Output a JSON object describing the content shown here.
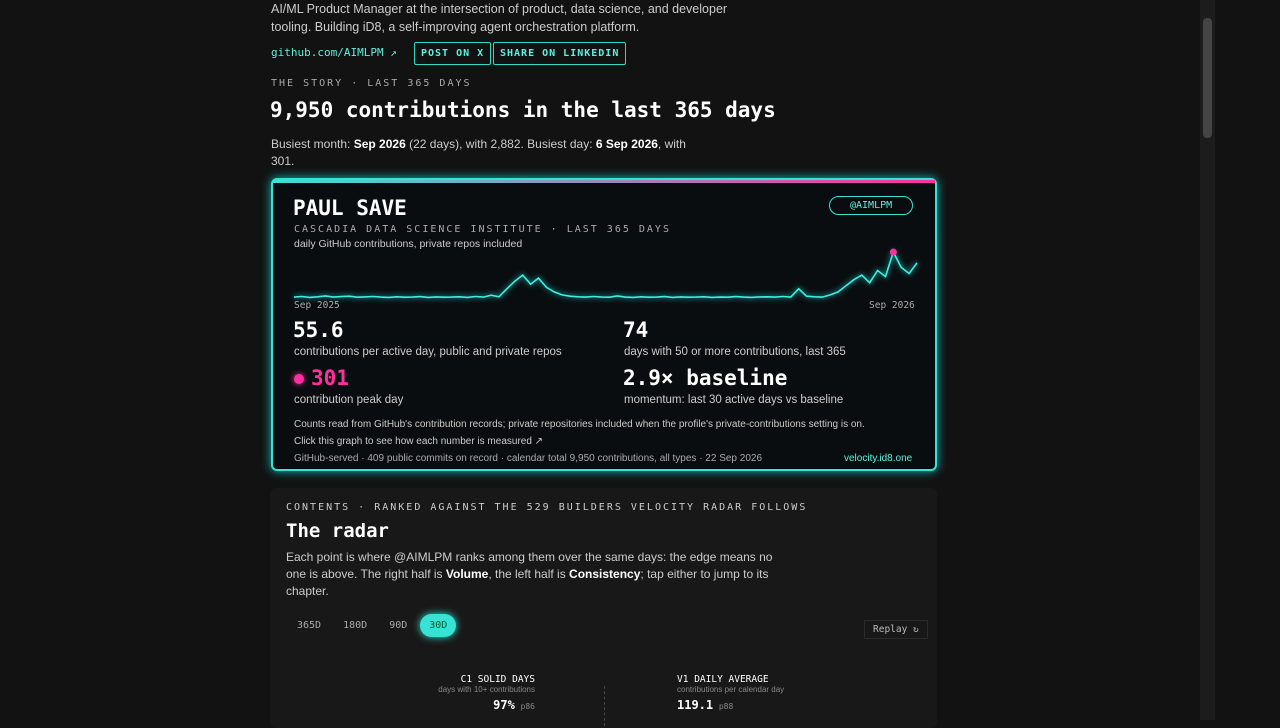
{
  "intro": "AI/ML Product Manager at the intersection of product, data science, and developer tooling. Building iD8, a self-improving agent orchestration platform.",
  "links": {
    "github": "github.com/AIMLPM ↗",
    "post": "POST ON X",
    "share": "SHARE ON LINKEDIN"
  },
  "story": {
    "eyebrow": "THE STORY · LAST 365 DAYS",
    "title": "9,950 contributions in the last 365 days",
    "summary": [
      "Busiest month: ",
      "Sep 2026",
      " (22 days), with 2,882. Busiest day: ",
      "6 Sep 2026",
      ", with 301."
    ]
  },
  "card": {
    "name": "PAUL SAVE",
    "handle": "@AIMLPM",
    "org": "CASCADIA DATA SCIENCE INSTITUTE · LAST 365 DAYS",
    "caption": "daily GitHub contributions, private repos included",
    "sparkline": {
      "start": "Sep 2025",
      "end": "Sep 2026",
      "values": [
        6,
        10,
        4,
        8,
        14,
        6,
        9,
        12,
        5,
        7,
        10,
        6,
        4,
        8,
        5,
        6,
        9,
        4,
        7,
        5,
        6,
        8,
        4,
        10,
        6,
        18,
        8,
        60,
        110,
        150,
        90,
        130,
        70,
        40,
        20,
        12,
        8,
        6,
        10,
        6,
        5,
        14,
        6,
        4,
        8,
        5,
        6,
        9,
        4,
        7,
        5,
        6,
        8,
        4,
        6,
        5,
        9,
        6,
        4,
        7,
        8,
        6,
        10,
        6,
        60,
        12,
        8,
        6,
        20,
        40,
        80,
        120,
        150,
        100,
        180,
        140,
        301,
        200,
        160,
        230
      ]
    },
    "stats": [
      {
        "value": "55.6",
        "label": "contributions per active day, public and private repos"
      },
      {
        "value": "74",
        "label": "days with 50 or more contributions, last 365"
      },
      {
        "value": "301",
        "label": "contribution peak day"
      },
      {
        "value": "2.9× baseline",
        "label": "momentum: last 30 active days vs baseline"
      }
    ],
    "notes": [
      "Counts read from GitHub's contribution records; private repositories included when the profile's private-contributions setting is on.",
      "Click this graph to see how each number is measured ↗"
    ],
    "footer": "GitHub-served · 409 public commits on record · calendar total 9,950 contributions, all types · 22 Sep 2026",
    "site": "velocity.id8.one"
  },
  "radar": {
    "eyebrow": "CONTENTS · RANKED AGAINST THE 529 BUILDERS VELOCITY RADAR FOLLOWS",
    "title": "The radar",
    "body": [
      "Each point is where @AIMLPM ranks among them over the same days: the edge means no one is above. The right half is ",
      "Volume",
      ", the left half is ",
      "Consistency",
      "; tap either to jump to its chapter."
    ],
    "tabs": [
      "365D",
      "180D",
      "90D",
      "30D"
    ],
    "replay": "Replay ↻",
    "metrics": [
      {
        "code": "C1",
        "name": "SOLID DAYS",
        "sub": "days with 10+ contributions",
        "value": "97%",
        "pct": "p86"
      },
      {
        "code": "V1",
        "name": "DAILY AVERAGE",
        "sub": "contributions per calendar day",
        "value": "119.1",
        "pct": "p88"
      }
    ]
  }
}
